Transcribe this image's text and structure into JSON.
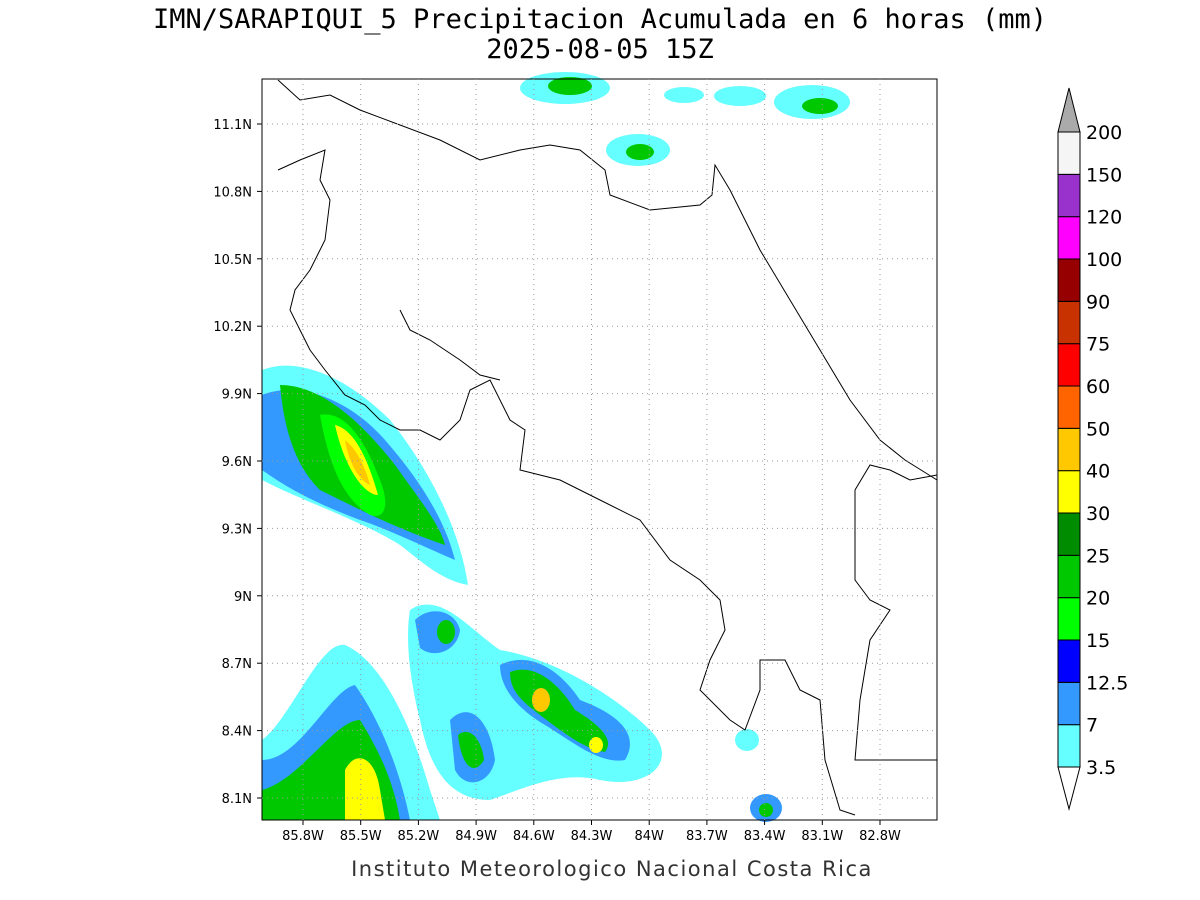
{
  "title": [
    "IMN/SARAPIQUI_5 Precipitacion Acumulada en 6 horas (mm)",
    "2025-08-05 15Z"
  ],
  "map": {
    "lat_ticks": [
      "11.1N",
      "10.8N",
      "10.5N",
      "10.2N",
      "9.9N",
      "9.6N",
      "9.3N",
      "9N",
      "8.7N",
      "8.4N",
      "8.1N"
    ],
    "lon_ticks": [
      "85.8W",
      "85.5W",
      "85.2W",
      "84.9W",
      "84.6W",
      "84.3W",
      "84W",
      "83.7W",
      "83.4W",
      "83.1W",
      "82.8W"
    ]
  },
  "colorbar": {
    "levels": [
      "3.5",
      "7",
      "12.5",
      "15",
      "20",
      "25",
      "30",
      "40",
      "50",
      "60",
      "75",
      "90",
      "100",
      "120",
      "150",
      "200"
    ],
    "colors": [
      "#66ffff",
      "#3399ff",
      "#0000ff",
      "#00ff00",
      "#00c800",
      "#008c00",
      "#ffff00",
      "#ffc800",
      "#ff6400",
      "#ff0000",
      "#c83200",
      "#960000",
      "#ff00ff",
      "#9932cc",
      "#f5f5f5"
    ],
    "under_color": "#ffffff",
    "over_color": "#aaaaaa"
  },
  "footer": "Instituto Meteorologico Nacional Costa Rica"
}
